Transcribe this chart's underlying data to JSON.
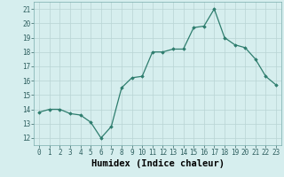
{
  "x": [
    0,
    1,
    2,
    3,
    4,
    5,
    6,
    7,
    8,
    9,
    10,
    11,
    12,
    13,
    14,
    15,
    16,
    17,
    18,
    19,
    20,
    21,
    22,
    23
  ],
  "y": [
    13.8,
    14.0,
    14.0,
    13.7,
    13.6,
    13.1,
    12.0,
    12.8,
    15.5,
    16.2,
    16.3,
    18.0,
    18.0,
    18.2,
    18.2,
    19.7,
    19.8,
    21.0,
    19.0,
    18.5,
    18.3,
    17.5,
    16.3,
    15.7
  ],
  "xlabel": "Humidex (Indice chaleur)",
  "xlim": [
    -0.5,
    23.5
  ],
  "ylim": [
    11.5,
    21.5
  ],
  "yticks": [
    12,
    13,
    14,
    15,
    16,
    17,
    18,
    19,
    20,
    21
  ],
  "xticks": [
    0,
    1,
    2,
    3,
    4,
    5,
    6,
    7,
    8,
    9,
    10,
    11,
    12,
    13,
    14,
    15,
    16,
    17,
    18,
    19,
    20,
    21,
    22,
    23
  ],
  "line_color": "#2e7d6e",
  "marker": "D",
  "marker_size": 1.8,
  "bg_color": "#d6eeee",
  "grid_color": "#b8d4d4",
  "xlabel_fontsize": 7.5,
  "tick_fontsize": 5.5,
  "line_width": 0.9
}
